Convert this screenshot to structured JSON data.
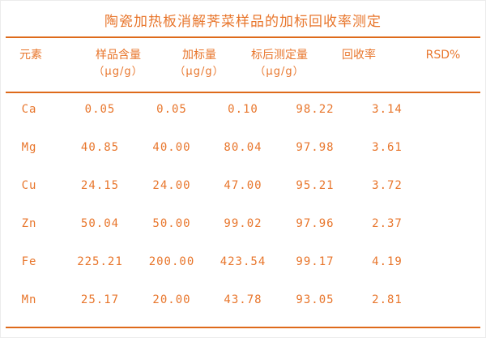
{
  "title": "陶瓷加热板消解荠菜样品的加标回收率测定",
  "colors": {
    "text": "#e8762c",
    "rule": "#de6a1a",
    "background": "#ffffff"
  },
  "chart_data": {
    "type": "table",
    "title": "陶瓷加热板消解荠菜样品的加标回收率测定",
    "columns": [
      {
        "label": "元素",
        "unit": ""
      },
      {
        "label": "样品含量",
        "unit": "（μg/g）"
      },
      {
        "label": "加标量",
        "unit": "（μg/g）"
      },
      {
        "label": "标后测定量",
        "unit": "（μg/g）"
      },
      {
        "label": "回收率",
        "unit": ""
      },
      {
        "label": "RSD%",
        "unit": ""
      }
    ],
    "rows": [
      [
        "Ca",
        "0.05",
        "0.05",
        "0.10",
        "98.22",
        "3.14"
      ],
      [
        "Mg",
        "40.85",
        "40.00",
        "80.04",
        "97.98",
        "3.61"
      ],
      [
        "Cu",
        "24.15",
        "24.00",
        "47.00",
        "95.21",
        "3.72"
      ],
      [
        "Zn",
        "50.04",
        "50.00",
        "99.02",
        "97.96",
        "2.37"
      ],
      [
        "Fe",
        "225.21",
        "200.00",
        "423.54",
        "99.17",
        "4.19"
      ],
      [
        "Mn",
        "25.17",
        "20.00",
        "43.78",
        "93.05",
        "2.81"
      ]
    ]
  }
}
